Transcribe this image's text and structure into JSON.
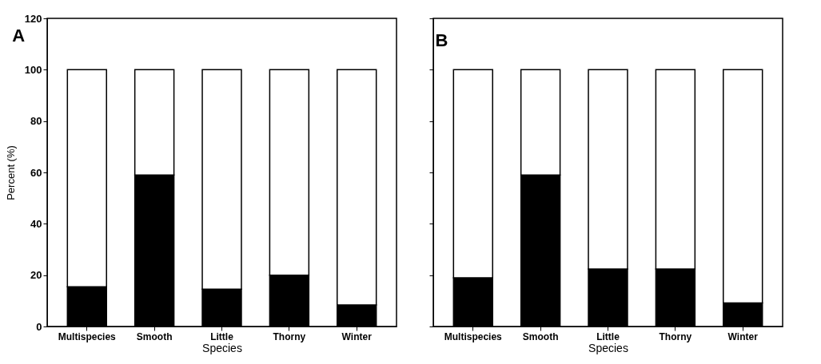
{
  "chart_data": [
    {
      "type": "bar",
      "title": "A",
      "stacked": true,
      "xlabel": "Species",
      "ylabel": "Percent (%)",
      "categories": [
        "Multispecies",
        "Smooth",
        "Little",
        "Thorny",
        "Winter"
      ],
      "ylim": [
        0,
        120
      ],
      "yticks": [
        0,
        20,
        40,
        60,
        80,
        100,
        120
      ],
      "grid": false,
      "legend": false,
      "series": [
        {
          "color": "#000000",
          "values": [
            15.5,
            59,
            14.5,
            20,
            8.4
          ]
        },
        {
          "color": "#ffffff",
          "values": [
            84.5,
            41,
            85.5,
            80,
            91.6
          ]
        }
      ]
    },
    {
      "type": "bar",
      "title": "B",
      "stacked": true,
      "xlabel": "Species",
      "categories": [
        "Multispecies",
        "Smooth",
        "Little",
        "Thorny",
        "Winter"
      ],
      "ylim": [
        0,
        120
      ],
      "yticks": [
        0,
        20,
        40,
        60,
        80,
        100,
        120
      ],
      "tick_labels": "x",
      "grid": false,
      "legend": false,
      "series": [
        {
          "color": "#000000",
          "values": [
            19,
            59,
            22.4,
            22.4,
            9.2
          ]
        },
        {
          "color": "#ffffff",
          "values": [
            81,
            41,
            77.6,
            77.6,
            90.8
          ]
        }
      ]
    }
  ]
}
